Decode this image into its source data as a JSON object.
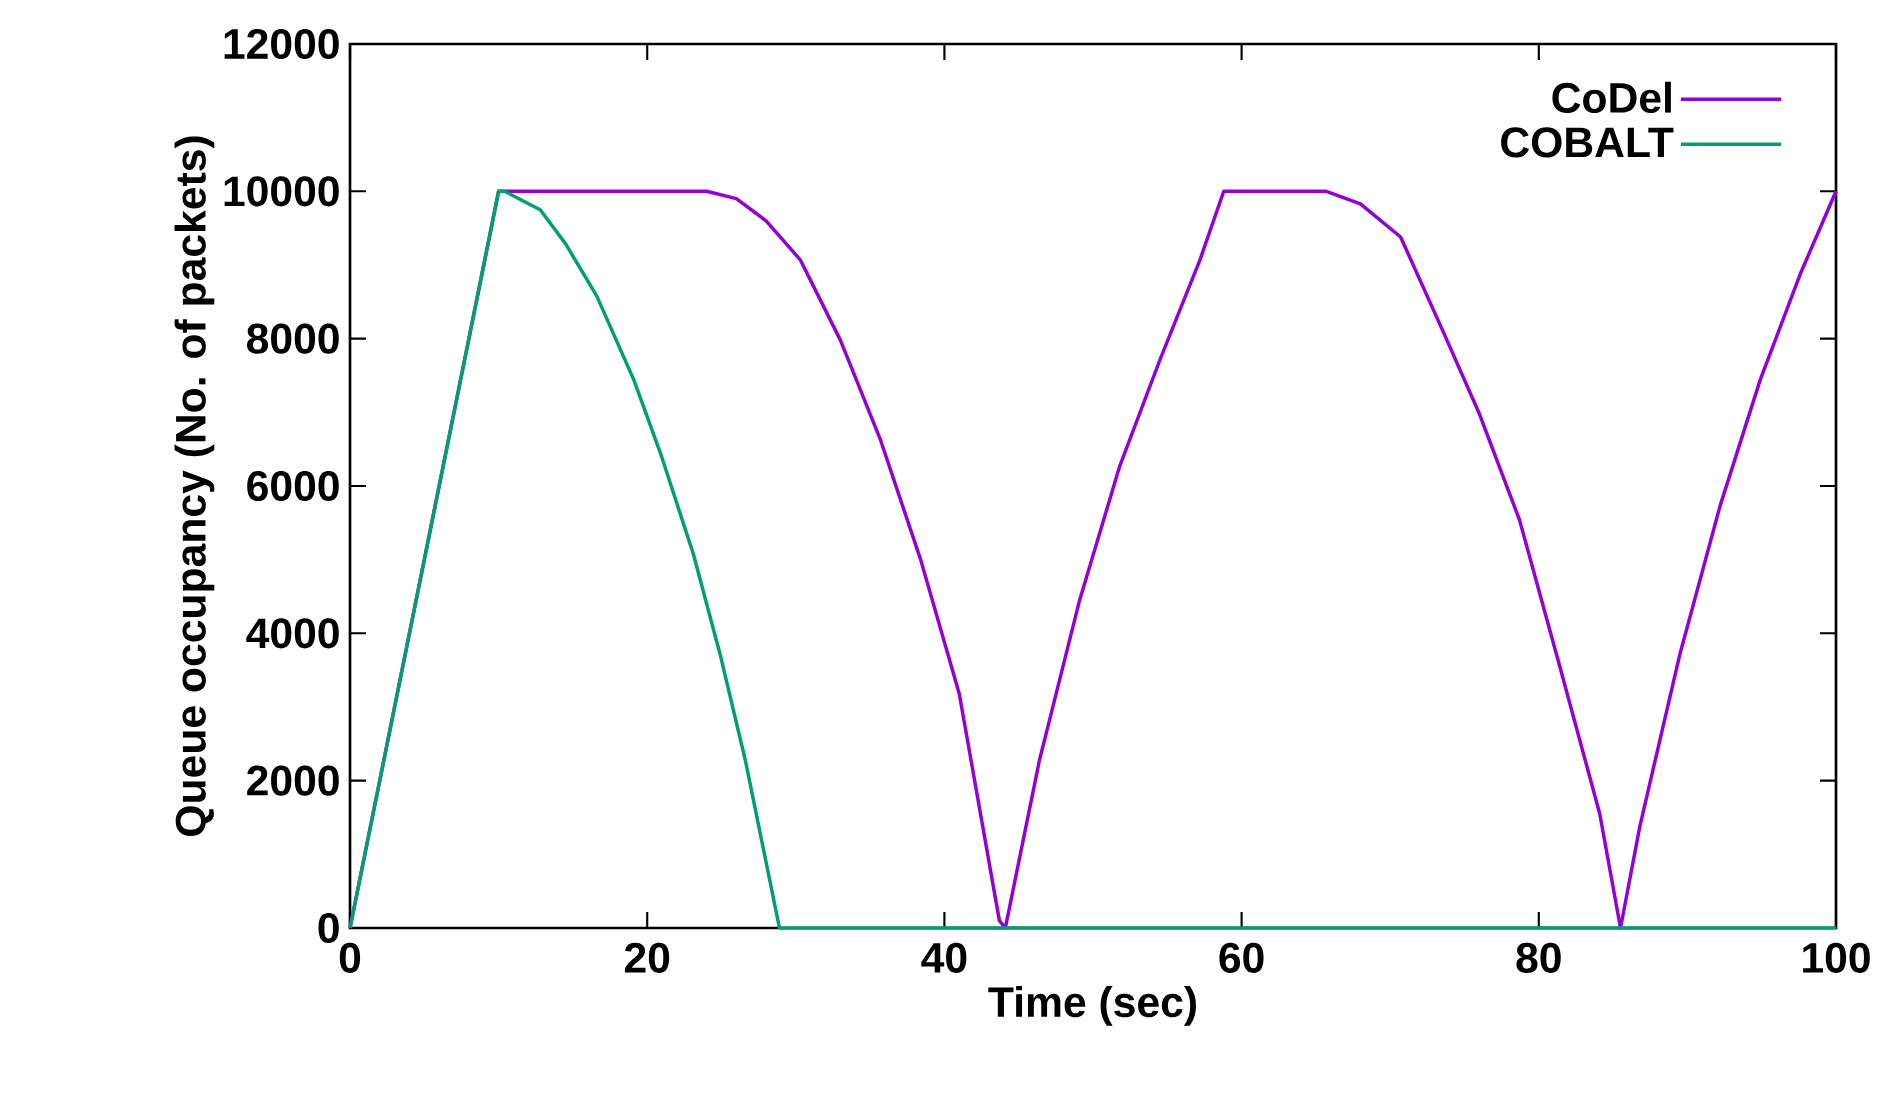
{
  "chart_data": {
    "type": "line",
    "xlabel": "Time (sec)",
    "ylabel": "Queue occupancy (No. of packets)",
    "xlim": [
      0,
      100
    ],
    "xticks": [
      0,
      20,
      40,
      60,
      80,
      100
    ],
    "ylim": [
      0,
      12000
    ],
    "yticks": [
      0,
      2000,
      4000,
      6000,
      8000,
      10000,
      12000
    ],
    "grid": false,
    "legend": "top right",
    "marker": "none",
    "line_style": "solid",
    "series": [
      {
        "name": "CoDel",
        "color": "#9400d3",
        "x": [
          0,
          10,
          24,
          26,
          28,
          30.3,
          33.0,
          35.7,
          38.4,
          41.0,
          43.7,
          44.1,
          46.4,
          49.1,
          51.8,
          54.5,
          57.2,
          58.8,
          65.7,
          68.0,
          70.7,
          73.4,
          76.0,
          78.7,
          81.4,
          84.1,
          85.5,
          86.8,
          89.5,
          92.2,
          94.9,
          97.6,
          100
        ],
        "values": [
          0,
          10000,
          10000,
          9900,
          9600,
          9070,
          7980,
          6625,
          5000,
          3180,
          100,
          0,
          2280,
          4450,
          6270,
          7710,
          9070,
          10000,
          10000,
          9830,
          9380,
          8170,
          6980,
          5540,
          3560,
          1550,
          0,
          1380,
          3720,
          5730,
          7440,
          8880,
          10000
        ]
      },
      {
        "name": "COBALT",
        "color": "#009e73",
        "x": [
          0,
          10,
          10.4,
          12.8,
          14.5,
          16.6,
          19.1,
          20.9,
          23.1,
          24.9,
          26.6,
          28.9,
          100
        ],
        "values": [
          0,
          10000,
          10000,
          9750,
          9290,
          8580,
          7440,
          6440,
          5080,
          3720,
          2280,
          0,
          0
        ]
      }
    ]
  }
}
